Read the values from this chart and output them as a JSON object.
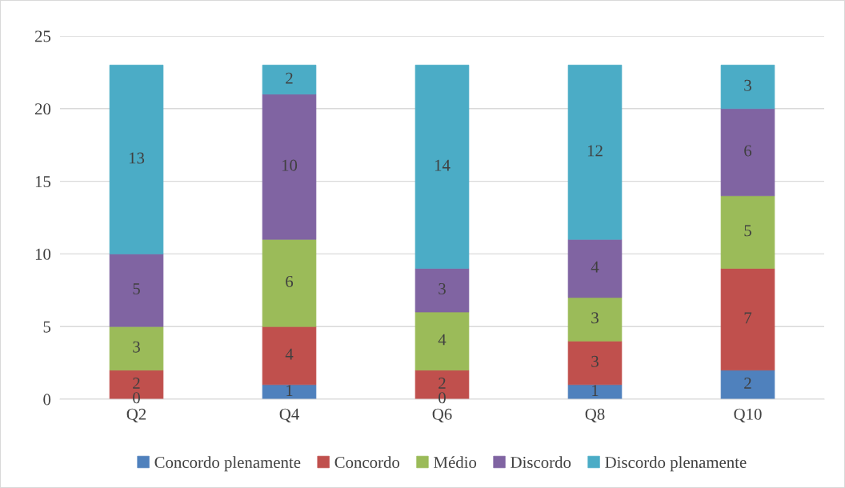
{
  "chart_data": {
    "type": "bar",
    "stacked": true,
    "categories": [
      "Q2",
      "Q4",
      "Q6",
      "Q8",
      "Q10"
    ],
    "series": [
      {
        "name": "Concordo plenamente",
        "color": "#4f81bd",
        "values": [
          0,
          1,
          0,
          1,
          2
        ]
      },
      {
        "name": "Concordo",
        "color": "#c0504d",
        "values": [
          2,
          4,
          2,
          3,
          7
        ]
      },
      {
        "name": "Médio",
        "color": "#9bbb59",
        "values": [
          3,
          6,
          4,
          3,
          5
        ]
      },
      {
        "name": "Discordo",
        "color": "#8064a2",
        "values": [
          5,
          10,
          3,
          4,
          6
        ]
      },
      {
        "name": "Discordo plenamente",
        "color": "#4bacc6",
        "values": [
          13,
          2,
          14,
          12,
          3
        ]
      }
    ],
    "ylim": [
      0,
      25
    ],
    "yticks": [
      0,
      5,
      10,
      15,
      20,
      25
    ],
    "grid": "y",
    "legend": "bottom",
    "data_labels": true
  }
}
